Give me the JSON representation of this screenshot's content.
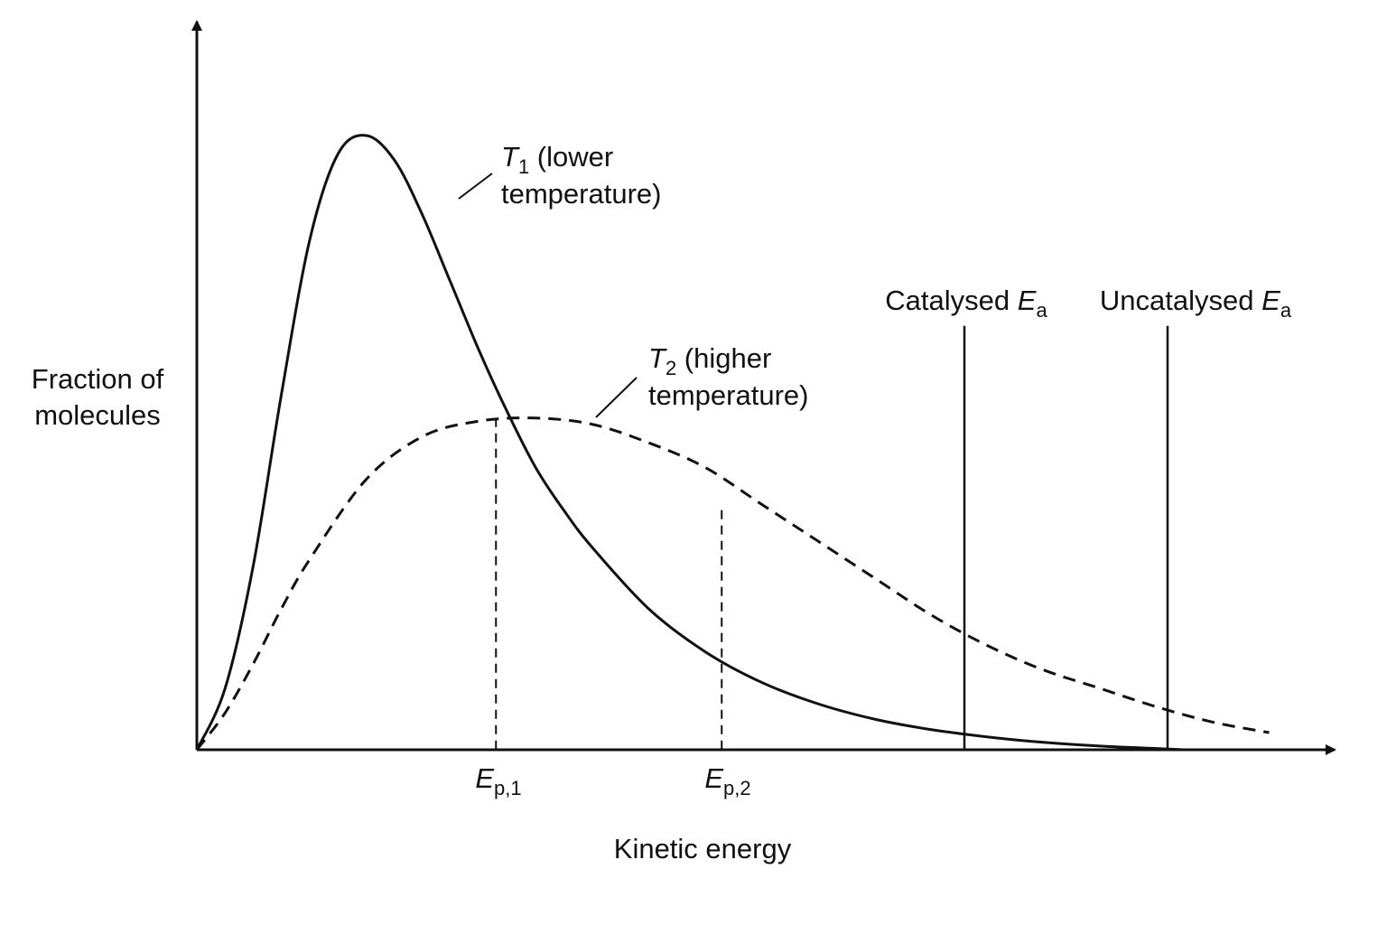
{
  "chart_data": {
    "type": "line",
    "xlabel": "Kinetic energy",
    "ylabel_lines": [
      "Fraction of",
      "molecules"
    ],
    "xlim": [
      0,
      10
    ],
    "ylim": [
      0,
      1
    ],
    "grid": false,
    "legend": "none",
    "series": [
      {
        "id": "T1",
        "label_symbol": "T",
        "label_sub": "1",
        "label_text_1": " (lower",
        "label_text_2": "temperature)",
        "line_style": "solid",
        "x": [
          0,
          0.25,
          0.5,
          0.75,
          1.0,
          1.25,
          1.5,
          1.75,
          2.0,
          2.25,
          2.5,
          2.75,
          3.0,
          3.25,
          3.5,
          4.0,
          4.5,
          5.0,
          5.5,
          6.0,
          6.5,
          7.0,
          7.5,
          8.0,
          8.5,
          8.75
        ],
        "y": [
          0,
          0.1,
          0.3,
          0.58,
          0.83,
          0.97,
          1.0,
          0.96,
          0.87,
          0.76,
          0.65,
          0.55,
          0.46,
          0.39,
          0.33,
          0.23,
          0.16,
          0.11,
          0.075,
          0.05,
          0.033,
          0.021,
          0.012,
          0.006,
          0.002,
          0
        ]
      },
      {
        "id": "T2",
        "label_symbol": "T",
        "label_sub": "2",
        "label_text_1": " (higher",
        "label_text_2": "temperature)",
        "line_style": "dashed",
        "x": [
          0,
          0.25,
          0.5,
          0.75,
          1.0,
          1.5,
          2.0,
          2.5,
          3.0,
          3.5,
          4.0,
          4.5,
          5.0,
          5.5,
          6.0,
          6.5,
          7.0,
          7.5,
          8.0,
          8.5,
          9.0,
          9.5
        ],
        "y": [
          0,
          0.06,
          0.14,
          0.23,
          0.31,
          0.44,
          0.51,
          0.535,
          0.54,
          0.53,
          0.5,
          0.46,
          0.4,
          0.34,
          0.28,
          0.22,
          0.17,
          0.13,
          0.1,
          0.07,
          0.045,
          0.028
        ]
      }
    ],
    "peak_markers": [
      {
        "id": "Ep1",
        "x": 2.65,
        "y": 0.54,
        "label_symbol": "E",
        "label_sub": "p,1"
      },
      {
        "id": "Ep2",
        "x": 4.65,
        "y": 0.39,
        "label_symbol": "E",
        "label_sub": "p,2"
      }
    ],
    "energy_lines": [
      {
        "id": "catalysed",
        "x": 6.8,
        "y_top": 0.69,
        "label_text": "Catalysed ",
        "label_symbol": "E",
        "label_sub": "a"
      },
      {
        "id": "uncatalysed",
        "x": 8.6,
        "y_top": 0.69,
        "label_text": "Uncatalysed ",
        "label_symbol": "E",
        "label_sub": "a"
      }
    ],
    "colors": {
      "ink": "#111111",
      "background": "#ffffff"
    }
  }
}
